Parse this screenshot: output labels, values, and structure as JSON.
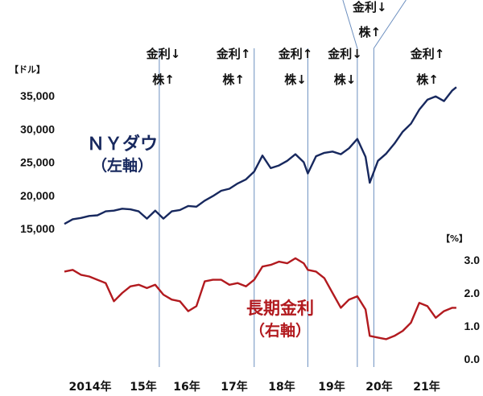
{
  "chart_data": {
    "type": "line",
    "x": [
      "2014-01",
      "2014-03",
      "2014-05",
      "2014-07",
      "2014-09",
      "2014-11",
      "2015-01",
      "2015-03",
      "2015-05",
      "2015-07",
      "2015-09",
      "2015-11",
      "2016-01",
      "2016-03",
      "2016-05",
      "2016-07",
      "2016-09",
      "2016-11",
      "2017-01",
      "2017-03",
      "2017-05",
      "2017-07",
      "2017-09",
      "2017-11",
      "2018-01",
      "2018-03",
      "2018-05",
      "2018-07",
      "2018-09",
      "2018-11",
      "2018-12",
      "2019-02",
      "2019-04",
      "2019-06",
      "2019-08",
      "2019-10",
      "2019-12",
      "2020-02",
      "2020-03",
      "2020-05",
      "2020-07",
      "2020-09",
      "2020-11",
      "2021-01",
      "2021-03",
      "2021-05",
      "2021-07",
      "2021-09",
      "2021-11",
      "2021-12"
    ],
    "categories": [
      "2014年",
      "15年",
      "16年",
      "17年",
      "18年",
      "19年",
      "20年",
      "21年"
    ],
    "series": [
      {
        "name": "ＮＹダウ",
        "sub": "（左軸）",
        "axis": "left",
        "color": "#17285e",
        "values": [
          15700,
          16400,
          16600,
          16900,
          17000,
          17600,
          17700,
          18000,
          17900,
          17600,
          16500,
          17700,
          16500,
          17600,
          17800,
          18400,
          18300,
          19200,
          19900,
          20700,
          21000,
          21800,
          22400,
          23600,
          26000,
          24100,
          24500,
          25200,
          26200,
          25000,
          23300,
          25900,
          26400,
          26600,
          26200,
          27100,
          28500,
          25800,
          21900,
          25200,
          26300,
          27800,
          29600,
          30800,
          32900,
          34400,
          34900,
          34200,
          35800,
          36300
        ]
      },
      {
        "name": "長期金利",
        "sub": "（右軸）",
        "axis": "right",
        "color": "#b21a1f",
        "values": [
          2.65,
          2.7,
          2.55,
          2.5,
          2.4,
          2.3,
          1.75,
          2.0,
          2.2,
          2.25,
          2.15,
          2.25,
          1.95,
          1.8,
          1.75,
          1.45,
          1.6,
          2.35,
          2.4,
          2.4,
          2.25,
          2.3,
          2.2,
          2.4,
          2.8,
          2.85,
          2.95,
          2.9,
          3.05,
          2.9,
          2.7,
          2.65,
          2.45,
          2.0,
          1.55,
          1.8,
          1.9,
          1.5,
          0.7,
          0.65,
          0.6,
          0.7,
          0.85,
          1.1,
          1.7,
          1.6,
          1.25,
          1.45,
          1.55,
          1.55
        ]
      }
    ],
    "left_axis": {
      "unit": "【ドル】",
      "ticks": [
        "35,000",
        "30,000",
        "25,000",
        "20,000",
        "15,000"
      ],
      "tick_values": [
        35000,
        30000,
        25000,
        20000,
        15000
      ]
    },
    "right_axis": {
      "unit": "【%】",
      "ticks": [
        "3.0",
        "2.0",
        "1.0",
        "0.0"
      ],
      "tick_values": [
        3,
        2,
        1,
        0
      ]
    },
    "annotations": [
      {
        "date": "2016-01",
        "rate": "金利↓",
        "stock": "株↑"
      },
      {
        "date": "2017-06",
        "rate": "金利↑",
        "stock": "株↑"
      },
      {
        "date": "2018-09",
        "rate": "金利↑",
        "stock": "株↓"
      },
      {
        "date": "2019-09",
        "rate": "金利↓",
        "stock": "株↓"
      },
      {
        "date": "2020-03",
        "rate": "金利↓",
        "stock": "株↑"
      },
      {
        "date": "2021-05",
        "rate": "金利↑",
        "stock": "株↑"
      }
    ],
    "period_dividers": [
      "2015-12",
      "2017-11",
      "2018-12",
      "2019-12",
      "2020-04"
    ],
    "grid": false,
    "legend": "inline labels"
  }
}
